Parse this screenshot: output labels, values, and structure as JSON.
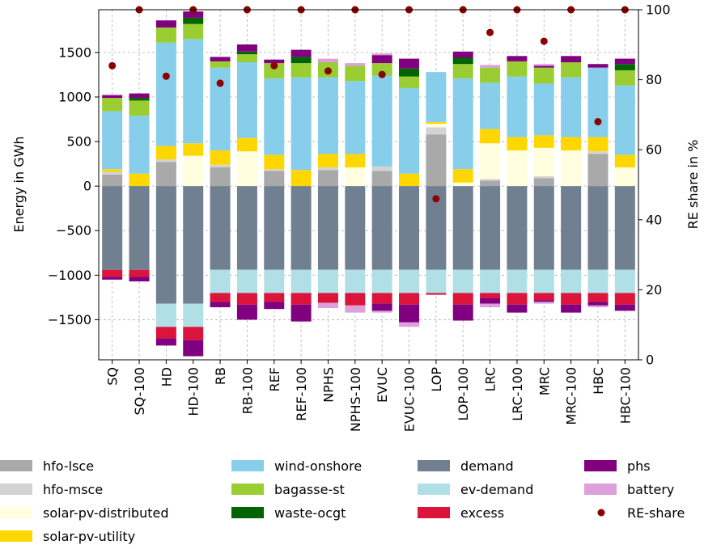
{
  "chart_data": {
    "type": "bar",
    "stacked": true,
    "title": "",
    "xlabel": "",
    "ylabel": "Energy in GWh",
    "y2label": "RE share in %",
    "ylim": [
      -1950,
      1980
    ],
    "y2lim": [
      0,
      100
    ],
    "yticks": [
      -1500,
      -1000,
      -500,
      0,
      500,
      1000,
      1500
    ],
    "y2ticks": [
      0,
      20,
      40,
      60,
      80,
      100
    ],
    "grid": true,
    "legend_position": "bottom",
    "categories": [
      "SQ",
      "SQ-100",
      "HD",
      "HD-100",
      "RB",
      "RB-100",
      "REF",
      "REF-100",
      "NPHS",
      "NPHS-100",
      "EVUC",
      "EVUC-100",
      "LOP",
      "LOP-100",
      "LRC",
      "LRC-100",
      "MRC",
      "MRC-100",
      "HBC",
      "HBC-100"
    ],
    "colors": {
      "hfo-lsce": "#a9a9a9",
      "hfo-msce": "#d3d3d3",
      "solar-pv-distributed": "#ffffe0",
      "solar-pv-utility": "#ffd700",
      "wind-onshore": "#87ceeb",
      "bagasse-st": "#9acd32",
      "waste-ocgt": "#006400",
      "demand": "#708090",
      "ev-demand": "#b0e0e6",
      "excess": "#dc143c",
      "phs": "#800080",
      "battery": "#dda0dd",
      "RE-share": "#8b0000"
    },
    "series": [
      {
        "name": "hfo-lsce",
        "values": [
          130,
          0,
          270,
          0,
          210,
          0,
          170,
          0,
          180,
          0,
          170,
          0,
          580,
          0,
          60,
          0,
          90,
          0,
          360,
          0
        ]
      },
      {
        "name": "hfo-msce",
        "values": [
          30,
          0,
          30,
          0,
          30,
          0,
          20,
          0,
          30,
          0,
          50,
          0,
          80,
          0,
          20,
          0,
          20,
          0,
          30,
          0
        ]
      },
      {
        "name": "solar-pv-distributed",
        "values": [
          0,
          0,
          0,
          340,
          0,
          390,
          0,
          0,
          0,
          210,
          0,
          0,
          40,
          40,
          400,
          400,
          320,
          400,
          0,
          210
        ]
      },
      {
        "name": "solar-pv-utility",
        "values": [
          30,
          140,
          150,
          140,
          160,
          150,
          160,
          180,
          150,
          150,
          0,
          140,
          20,
          150,
          160,
          150,
          140,
          150,
          160,
          140
        ]
      },
      {
        "name": "wind-onshore",
        "values": [
          650,
          650,
          1160,
          1170,
          930,
          850,
          860,
          1040,
          860,
          820,
          1020,
          960,
          560,
          1020,
          520,
          680,
          580,
          670,
          780,
          780
        ]
      },
      {
        "name": "bagasse-st",
        "values": [
          150,
          170,
          170,
          170,
          70,
          90,
          170,
          160,
          170,
          170,
          140,
          130,
          0,
          160,
          170,
          170,
          180,
          170,
          0,
          170
        ]
      },
      {
        "name": "waste-ocgt",
        "values": [
          0,
          30,
          0,
          70,
          0,
          30,
          0,
          70,
          0,
          0,
          0,
          90,
          0,
          70,
          0,
          0,
          0,
          0,
          0,
          70
        ]
      },
      {
        "name": "phs",
        "values": [
          30,
          50,
          80,
          70,
          50,
          80,
          40,
          80,
          0,
          0,
          90,
          110,
          0,
          70,
          0,
          60,
          20,
          70,
          40,
          60
        ]
      },
      {
        "name": "battery",
        "values": [
          10,
          0,
          0,
          0,
          0,
          0,
          0,
          0,
          40,
          30,
          20,
          0,
          0,
          0,
          30,
          0,
          20,
          0,
          0,
          0
        ]
      },
      {
        "name": "demand",
        "values": [
          -940,
          -940,
          -1320,
          -1320,
          -940,
          -940,
          -940,
          -940,
          -940,
          -940,
          -940,
          -940,
          -940,
          -940,
          -940,
          -940,
          -940,
          -940,
          -940,
          -940
        ]
      },
      {
        "name": "ev-demand",
        "values": [
          0,
          0,
          -260,
          -260,
          -260,
          -260,
          -260,
          -260,
          -260,
          -260,
          -260,
          -260,
          -260,
          -260,
          -260,
          -260,
          -260,
          -260,
          -260,
          -260
        ]
      },
      {
        "name": "excess",
        "values": [
          -80,
          -80,
          -130,
          -150,
          -100,
          -130,
          -100,
          -130,
          -110,
          -140,
          -120,
          -130,
          -20,
          -130,
          -60,
          -130,
          -80,
          -130,
          -100,
          -130
        ]
      },
      {
        "name": "phs",
        "values": [
          -30,
          -50,
          -80,
          -180,
          -60,
          -170,
          -80,
          -190,
          0,
          0,
          -80,
          -200,
          0,
          -180,
          -60,
          -90,
          -20,
          -90,
          -40,
          -70
        ]
      },
      {
        "name": "battery",
        "values": [
          0,
          0,
          0,
          0,
          0,
          0,
          0,
          0,
          -60,
          -80,
          -20,
          -50,
          0,
          0,
          -40,
          0,
          -20,
          0,
          -20,
          0
        ]
      }
    ],
    "re_share": {
      "name": "RE-share",
      "values": [
        84,
        100,
        81,
        100,
        79,
        100,
        84,
        100,
        82.5,
        100,
        81.5,
        100,
        46,
        100,
        93.5,
        100,
        91,
        100,
        68,
        100
      ]
    },
    "legend": [
      [
        "hfo-lsce",
        "hfo-msce",
        "solar-pv-distributed",
        "solar-pv-utility"
      ],
      [
        "wind-onshore",
        "bagasse-st",
        "waste-ocgt"
      ],
      [
        "demand",
        "ev-demand",
        "excess"
      ],
      [
        "phs",
        "battery",
        "RE-share"
      ]
    ]
  }
}
